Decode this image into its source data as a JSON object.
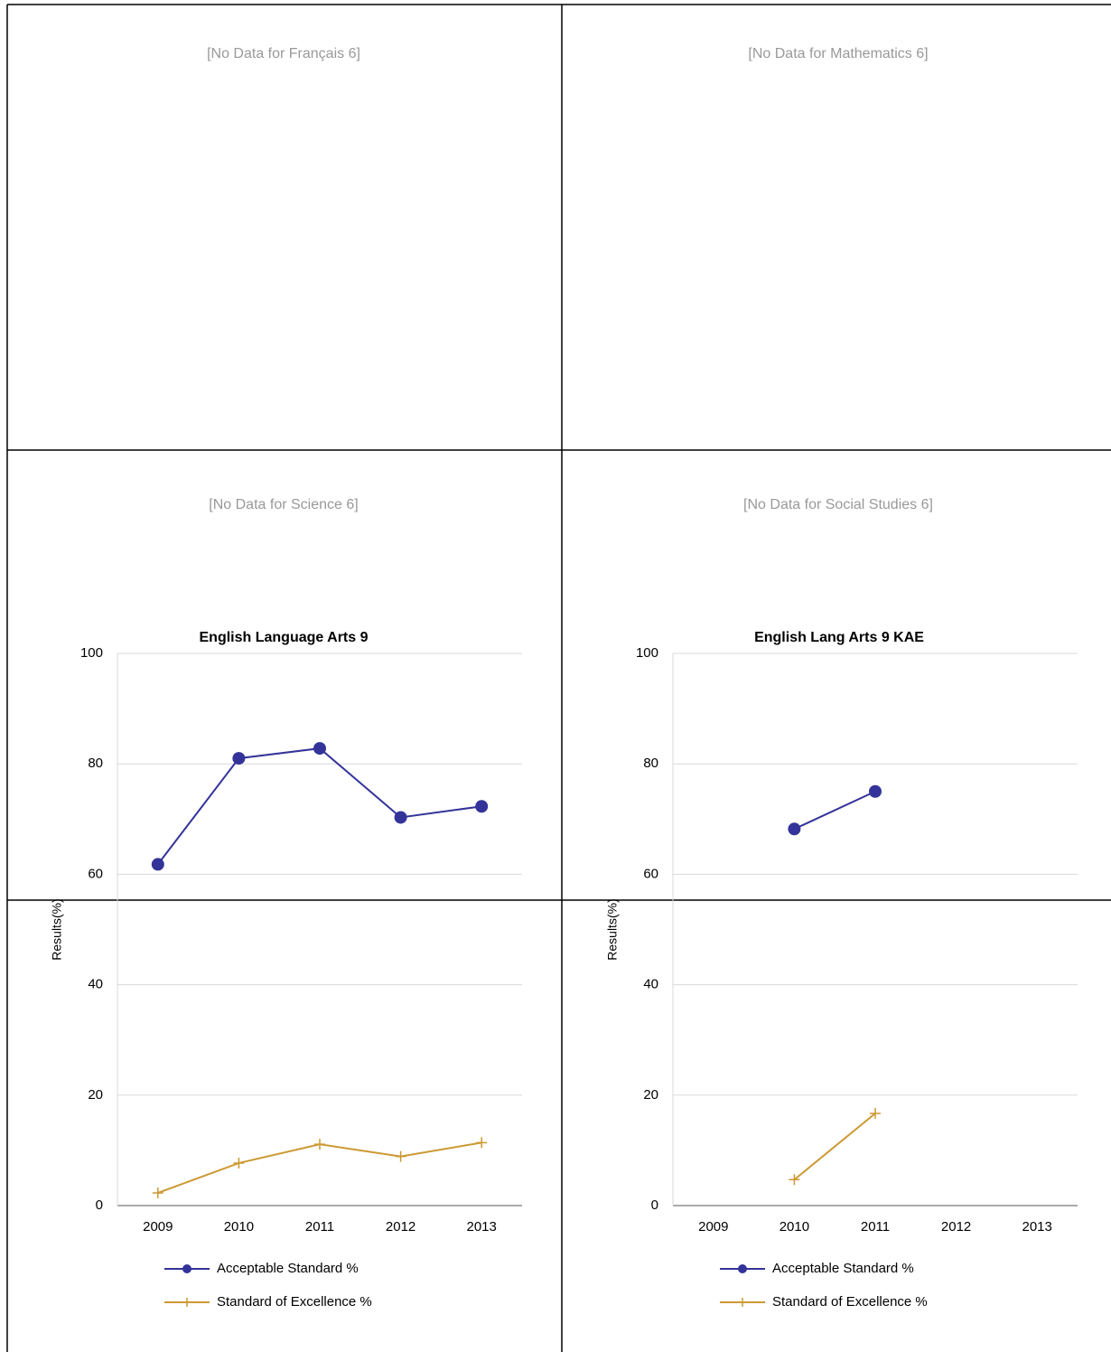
{
  "no_data_messages": [
    "[No Data for Français 6]",
    "[No Data for Mathematics 6]",
    "[No Data for Science 6]",
    "[No Data for Social Studies 6]"
  ],
  "chart_data": [
    {
      "type": "line",
      "title": "English Language Arts 9",
      "y_label": "Results(%)",
      "categories": [
        "2009",
        "2010",
        "2011",
        "2012",
        "2013"
      ],
      "ylim": [
        0,
        100
      ],
      "yticks": [
        0,
        20,
        40,
        60,
        80,
        100
      ],
      "grid": true,
      "series": [
        {
          "name": "Acceptable Standard %",
          "color": "#333399",
          "marker": "circle",
          "values": [
            61.8,
            81.0,
            82.8,
            70.3,
            72.3
          ]
        },
        {
          "name": "Standard of Excellence %",
          "color": "#cc9933",
          "marker": "plus",
          "values": [
            2.3,
            7.7,
            11.1,
            8.9,
            11.4
          ]
        }
      ]
    },
    {
      "type": "line",
      "title": "English Lang Arts 9 KAE",
      "y_label": "Results(%)",
      "categories": [
        "2009",
        "2010",
        "2011",
        "2012",
        "2013"
      ],
      "ylim": [
        0,
        100
      ],
      "yticks": [
        0,
        20,
        40,
        60,
        80,
        100
      ],
      "grid": true,
      "series": [
        {
          "name": "Acceptable Standard %",
          "color": "#333399",
          "marker": "circle",
          "values": [
            null,
            68.2,
            75.0,
            null,
            null
          ]
        },
        {
          "name": "Standard of Excellence %",
          "color": "#cc9933",
          "marker": "plus",
          "values": [
            null,
            4.7,
            16.7,
            null,
            null
          ]
        }
      ]
    }
  ]
}
